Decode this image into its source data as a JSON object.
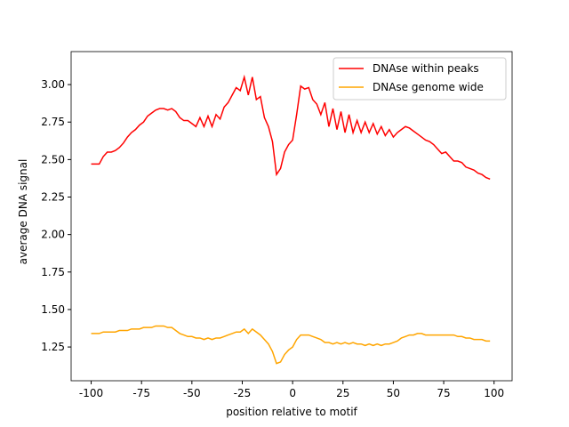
{
  "chart_data": {
    "type": "line",
    "x_label": "position relative to motif",
    "y_label": "average DNA signal",
    "x": [
      -100,
      -98,
      -96,
      -94,
      -92,
      -90,
      -88,
      -86,
      -84,
      -82,
      -80,
      -78,
      -76,
      -74,
      -72,
      -70,
      -68,
      -66,
      -64,
      -62,
      -60,
      -58,
      -56,
      -54,
      -52,
      -50,
      -48,
      -46,
      -44,
      -42,
      -40,
      -38,
      -36,
      -34,
      -32,
      -30,
      -28,
      -26,
      -24,
      -22,
      -20,
      -18,
      -16,
      -14,
      -12,
      -10,
      -8,
      -6,
      -4,
      -2,
      0,
      2,
      4,
      6,
      8,
      10,
      12,
      14,
      16,
      18,
      20,
      22,
      24,
      26,
      28,
      30,
      32,
      34,
      36,
      38,
      40,
      42,
      44,
      46,
      48,
      50,
      52,
      54,
      56,
      58,
      60,
      62,
      64,
      66,
      68,
      70,
      72,
      74,
      76,
      78,
      80,
      82,
      84,
      86,
      88,
      90,
      92,
      94,
      96,
      98
    ],
    "series": [
      {
        "name": "DNAse within peaks",
        "color": "#ff0000",
        "values": [
          2.47,
          2.47,
          2.47,
          2.52,
          2.55,
          2.55,
          2.56,
          2.58,
          2.61,
          2.65,
          2.68,
          2.7,
          2.73,
          2.75,
          2.79,
          2.81,
          2.83,
          2.84,
          2.84,
          2.83,
          2.84,
          2.82,
          2.78,
          2.76,
          2.76,
          2.74,
          2.72,
          2.78,
          2.72,
          2.79,
          2.72,
          2.8,
          2.77,
          2.85,
          2.88,
          2.93,
          2.98,
          2.96,
          3.05,
          2.93,
          3.05,
          2.9,
          2.92,
          2.78,
          2.72,
          2.62,
          2.4,
          2.44,
          2.55,
          2.6,
          2.63,
          2.8,
          2.99,
          2.97,
          2.98,
          2.9,
          2.87,
          2.8,
          2.88,
          2.72,
          2.84,
          2.7,
          2.82,
          2.68,
          2.8,
          2.68,
          2.76,
          2.68,
          2.75,
          2.68,
          2.74,
          2.67,
          2.72,
          2.66,
          2.7,
          2.65,
          2.68,
          2.7,
          2.72,
          2.71,
          2.69,
          2.67,
          2.65,
          2.63,
          2.62,
          2.6,
          2.57,
          2.54,
          2.55,
          2.52,
          2.49,
          2.49,
          2.48,
          2.45,
          2.44,
          2.43,
          2.41,
          2.4,
          2.38,
          2.37
        ]
      },
      {
        "name": "DNAse genome wide",
        "color": "#ffa500",
        "values": [
          1.34,
          1.34,
          1.34,
          1.35,
          1.35,
          1.35,
          1.35,
          1.36,
          1.36,
          1.36,
          1.37,
          1.37,
          1.37,
          1.38,
          1.38,
          1.38,
          1.39,
          1.39,
          1.39,
          1.38,
          1.38,
          1.36,
          1.34,
          1.33,
          1.32,
          1.32,
          1.31,
          1.31,
          1.3,
          1.31,
          1.3,
          1.31,
          1.31,
          1.32,
          1.33,
          1.34,
          1.35,
          1.35,
          1.37,
          1.34,
          1.37,
          1.35,
          1.33,
          1.3,
          1.27,
          1.22,
          1.14,
          1.15,
          1.2,
          1.23,
          1.25,
          1.3,
          1.33,
          1.33,
          1.33,
          1.32,
          1.31,
          1.3,
          1.28,
          1.28,
          1.27,
          1.28,
          1.27,
          1.28,
          1.27,
          1.28,
          1.27,
          1.27,
          1.26,
          1.27,
          1.26,
          1.27,
          1.26,
          1.27,
          1.27,
          1.28,
          1.29,
          1.31,
          1.32,
          1.33,
          1.33,
          1.34,
          1.34,
          1.33,
          1.33,
          1.33,
          1.33,
          1.33,
          1.33,
          1.33,
          1.33,
          1.32,
          1.32,
          1.31,
          1.31,
          1.3,
          1.3,
          1.3,
          1.29,
          1.29
        ]
      }
    ],
    "xlim": [
      -109.95,
      108.95
    ],
    "ylim": [
      1.025,
      3.22
    ],
    "xticks": [
      -100,
      -75,
      -50,
      -25,
      0,
      25,
      50,
      75,
      100
    ],
    "yticks": [
      1.25,
      {
        "value": 1.5,
        "label": "1.50"
      },
      1.75,
      {
        "value": 2.0,
        "label": "2.00"
      },
      2.25,
      {
        "value": 2.5,
        "label": "2.50"
      },
      2.75,
      {
        "value": 3.0,
        "label": "3.00"
      }
    ],
    "legend": "upper right"
  }
}
